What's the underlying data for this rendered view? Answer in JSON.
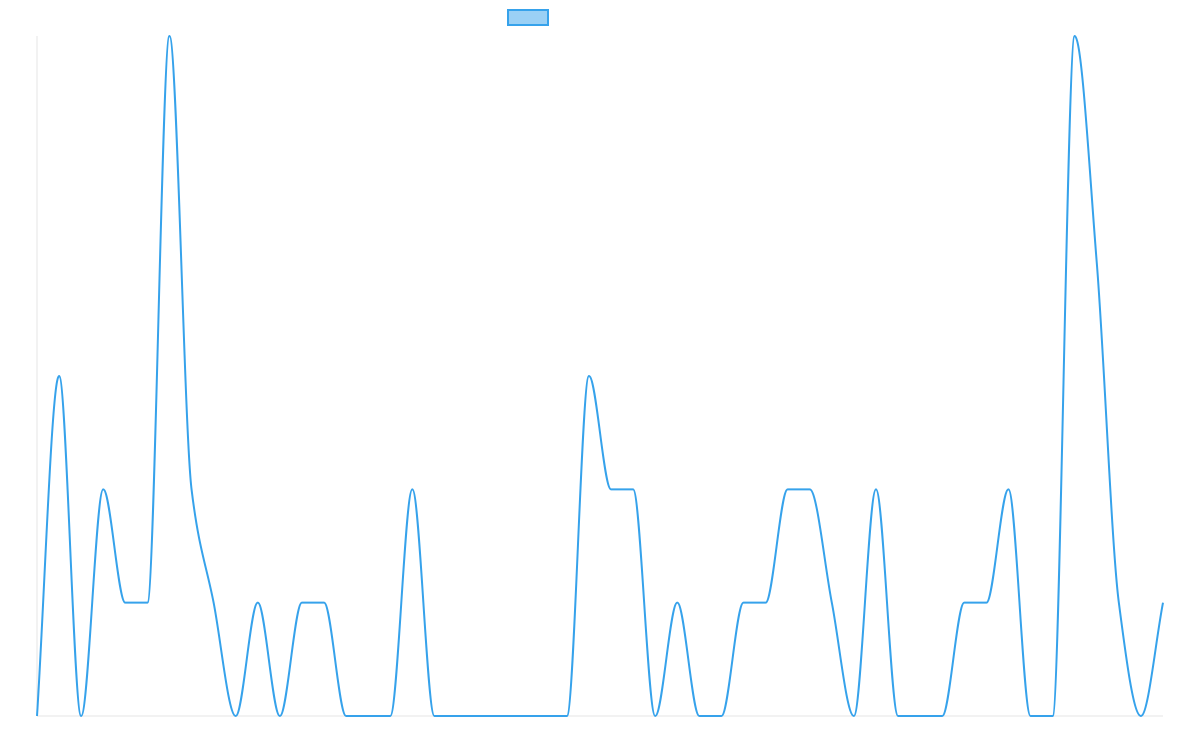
{
  "chart_data": {
    "type": "line",
    "categories": [
      null,
      null,
      null,
      null,
      null,
      null,
      null,
      null,
      null,
      null,
      null,
      null,
      null,
      null,
      null,
      null,
      null,
      null,
      null,
      null,
      null,
      null,
      null,
      null,
      null,
      null,
      null,
      null,
      null,
      null,
      null,
      null,
      null,
      null,
      null,
      null,
      null,
      null,
      null,
      null,
      null,
      null,
      null,
      null,
      null,
      null,
      null,
      null,
      null,
      null,
      null,
      null
    ],
    "series": [
      {
        "color": "#36a2eb",
        "values": [
          0,
          3,
          0,
          2,
          1,
          1,
          6,
          2,
          1,
          0,
          1,
          0,
          1,
          1,
          0,
          0,
          0,
          2,
          0,
          0,
          0,
          0,
          0,
          0,
          0,
          3,
          2,
          2,
          0,
          1,
          0,
          0,
          1,
          1,
          2,
          2,
          1,
          0,
          2,
          0,
          0,
          0,
          1,
          1,
          2,
          0,
          0,
          6,
          4,
          1,
          0,
          1
        ]
      }
    ],
    "ylim": [
      0,
      6
    ],
    "legend": "top"
  }
}
